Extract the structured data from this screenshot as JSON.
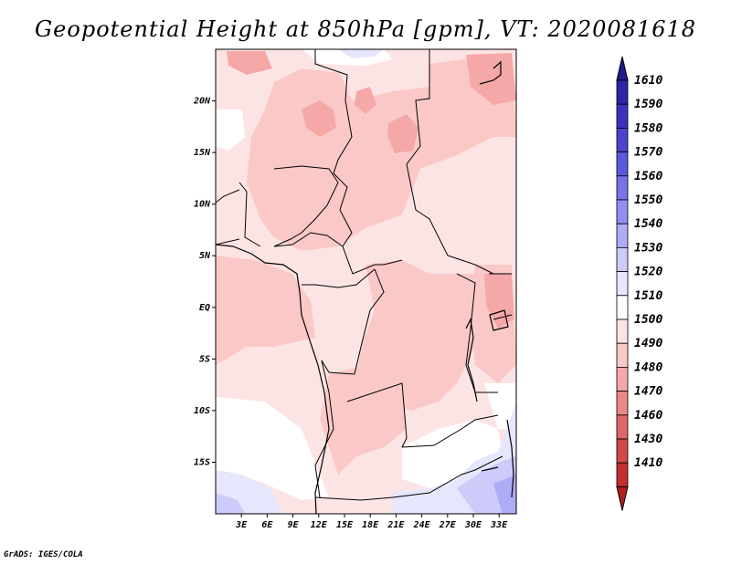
{
  "title": "Geopotential Height at 850hPa [gpm], VT: 2020081618",
  "credit": "GrADS: IGES/COLA",
  "map": {
    "lon_range": [
      0,
      35
    ],
    "lat_range": [
      -20,
      25
    ],
    "lon_ticks": [
      "3E",
      "6E",
      "9E",
      "12E",
      "15E",
      "18E",
      "21E",
      "24E",
      "27E",
      "30E",
      "33E"
    ],
    "lat_ticks": [
      "20N",
      "15N",
      "10N",
      "5N",
      "EQ",
      "5S",
      "10S",
      "15S"
    ]
  },
  "colorbar": {
    "labels": [
      "1610",
      "1590",
      "1580",
      "1570",
      "1560",
      "1550",
      "1540",
      "1530",
      "1520",
      "1510",
      "1500",
      "1490",
      "1480",
      "1470",
      "1460",
      "1430",
      "1410"
    ],
    "colors": [
      "#231a8c",
      "#2d25a6",
      "#3a32bc",
      "#4a44cc",
      "#5c58dc",
      "#7674e8",
      "#928ff2",
      "#aeacf6",
      "#cccbfa",
      "#e6e6fc",
      "#ffffff",
      "#fde4e4",
      "#fbc8c8",
      "#f5a8a8",
      "#eb8888",
      "#de6666",
      "#d04848",
      "#c23030",
      "#b01e1e"
    ]
  }
}
